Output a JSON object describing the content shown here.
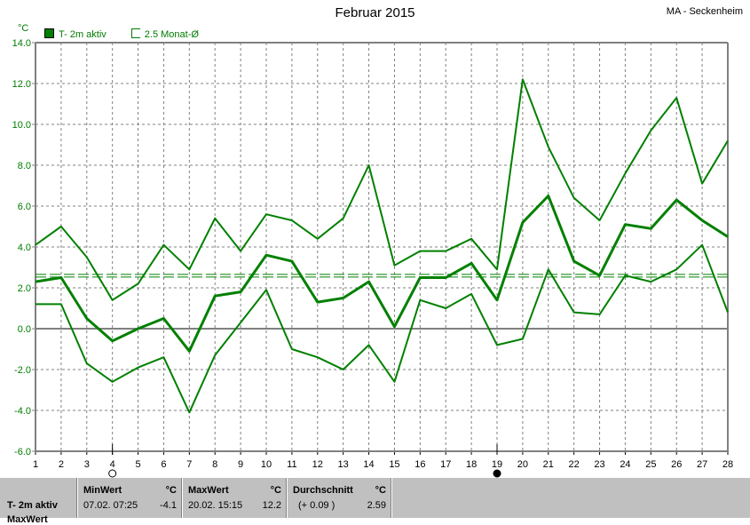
{
  "header": {
    "title": "Februar 2015",
    "station": "MA - Seckenheim",
    "unit": "°C"
  },
  "legend": [
    {
      "label": "T- 2m aktiv",
      "style": "filled"
    },
    {
      "label": "2.5 Monat-Ø",
      "style": "open"
    }
  ],
  "colors": {
    "series": "#008000",
    "grid": "#808080",
    "axis": "#808080",
    "panel": "#c0c0c0"
  },
  "moon_phases": [
    {
      "day": 4,
      "phase": "full-moon"
    },
    {
      "day": 19,
      "phase": "new-moon"
    }
  ],
  "chart_data": {
    "type": "line",
    "title": "Februar 2015",
    "ylabel": "°C",
    "ylim": [
      -6,
      14
    ],
    "yticks": [
      "14.0",
      "12.0",
      "10.0",
      "8.0",
      "6.0",
      "4.0",
      "2.0",
      "0.0",
      "-2.0",
      "-4.0",
      "-6.0"
    ],
    "x": [
      1,
      2,
      3,
      4,
      5,
      6,
      7,
      8,
      9,
      10,
      11,
      12,
      13,
      14,
      15,
      16,
      17,
      18,
      19,
      20,
      21,
      22,
      23,
      24,
      25,
      26,
      27,
      28
    ],
    "grid": true,
    "legend_position": "top-left",
    "series": [
      {
        "role": "max",
        "values": [
          4.1,
          5.0,
          3.5,
          1.4,
          2.2,
          4.1,
          2.9,
          5.4,
          3.8,
          5.6,
          5.3,
          4.4,
          5.4,
          8.0,
          3.1,
          3.8,
          3.8,
          4.4,
          2.9,
          12.2,
          8.9,
          6.4,
          5.3,
          7.6,
          9.7,
          11.3,
          7.1,
          9.2
        ]
      },
      {
        "name": "T- 2m aktiv",
        "role": "mean",
        "values": [
          2.3,
          2.5,
          0.5,
          -0.6,
          0.0,
          0.5,
          -1.1,
          1.6,
          1.8,
          3.6,
          3.3,
          1.3,
          1.5,
          2.3,
          0.1,
          2.5,
          2.5,
          3.2,
          1.4,
          5.2,
          6.5,
          3.3,
          2.6,
          5.1,
          4.9,
          6.3,
          5.3,
          4.5
        ]
      },
      {
        "role": "min",
        "values": [
          1.2,
          1.2,
          -1.7,
          -2.6,
          -1.9,
          -1.4,
          -4.1,
          -1.3,
          0.3,
          1.9,
          -1.0,
          -1.4,
          -2.0,
          -0.8,
          -2.6,
          1.4,
          1.0,
          1.7,
          -0.8,
          -0.5,
          2.9,
          0.8,
          0.7,
          2.6,
          2.3,
          2.9,
          4.1,
          0.8
        ]
      }
    ],
    "reference_line": {
      "name": "2.5 Monat-Ø",
      "value": 2.59
    }
  },
  "stats": {
    "row_label": "T- 2m aktiv",
    "row_label_2": "MaxWert",
    "min": {
      "header": "MinWert",
      "unit": "°C",
      "date": "07.02.  07:25",
      "value": "-4.1"
    },
    "max": {
      "header": "MaxWert",
      "unit": "°C",
      "date": "20.02.  15:15",
      "value": "12.2"
    },
    "avg": {
      "header": "Durchschnitt",
      "unit": "°C",
      "delta": "(+ 0.09 )",
      "value": "2.59"
    }
  }
}
